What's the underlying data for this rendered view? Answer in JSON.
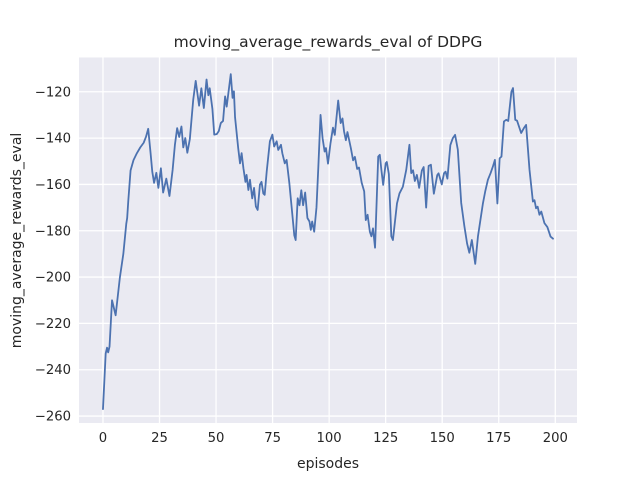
{
  "figure": {
    "background": "#ffffff",
    "axes_background": "#eaeaf2",
    "grid_color": "#ffffff",
    "text_color": "#262626"
  },
  "chart_data": {
    "type": "line",
    "title": "moving_average_rewards_eval of DDPG",
    "xlabel": "episodes",
    "ylabel": "moving_average_rewards_eval",
    "grid": true,
    "legend_position": "none",
    "xlim": [
      -10.6,
      209.6
    ],
    "ylim": [
      -263,
      -105.2
    ],
    "x_ticks": [
      0,
      25,
      50,
      75,
      100,
      125,
      150,
      175,
      200
    ],
    "x_tick_labels": [
      "0",
      "25",
      "50",
      "75",
      "100",
      "125",
      "150",
      "175",
      "200"
    ],
    "y_ticks": [
      -120,
      -140,
      -160,
      -180,
      -200,
      -220,
      -240,
      -260
    ],
    "y_tick_labels": [
      "−120",
      "−140",
      "−160",
      "−180",
      "−200",
      "−220",
      "−240",
      "−260"
    ],
    "series": [
      {
        "name": "moving_average_rewards_eval",
        "color": "#4c72b0",
        "x": [
          0,
          1.2,
          1.8,
          2.3,
          2.9,
          4,
          5.6,
          7.5,
          9,
          10.3,
          10.7,
          11.2,
          12.2,
          13.5,
          15,
          16.5,
          18,
          19,
          20,
          21,
          21.8,
          22.6,
          23.6,
          24.5,
          25.6,
          26.6,
          28,
          29.4,
          30.8,
          31.8,
          32.8,
          33.7,
          34.7,
          35.5,
          36.4,
          37.3,
          38.4,
          39.9,
          41,
          42.5,
          43.5,
          44.6,
          45.8,
          46.6,
          47.2,
          48.4,
          49.2,
          50.3,
          51.2,
          52.1,
          53.1,
          54,
          54.7,
          56.5,
          57.3,
          57.9,
          58.4,
          59.8,
          60.6,
          61.3,
          62.1,
          63,
          63.5,
          64.3,
          65,
          66,
          66.8,
          67.6,
          68.4,
          69.4,
          70.1,
          70.9,
          71.5,
          72.4,
          73.8,
          74.9,
          75.7,
          76.8,
          77.5,
          78.7,
          79.3,
          80.4,
          81.2,
          82.4,
          83.4,
          84.6,
          85.2,
          86.1,
          86.9,
          87.7,
          88.5,
          89.4,
          90.4,
          91.3,
          91.9,
          92.5,
          93.4,
          94.4,
          95.2,
          96.2,
          97.1,
          98,
          98.6,
          99.5,
          100.6,
          101.7,
          102.5,
          104,
          105.1,
          105.9,
          106.6,
          107.4,
          108.1,
          109.6,
          110.6,
          111.4,
          112.4,
          113.2,
          114.4,
          115.5,
          116.2,
          117,
          118,
          118.7,
          119.4,
          120.3,
          121.7,
          122.4,
          123.1,
          123.9,
          125,
          125.5,
          126.4,
          127.5,
          128.2,
          130,
          131.1,
          132.6,
          134.1,
          135.5,
          136.3,
          137.1,
          137.9,
          138.8,
          139.8,
          141,
          141.8,
          142.9,
          144,
          145,
          146.3,
          147.8,
          148.4,
          149.8,
          150.8,
          151.5,
          152.3,
          153.6,
          154.7,
          155.7,
          156.9,
          158.4,
          159.8,
          161,
          162,
          163.1,
          164.6,
          165.8,
          166.9,
          168,
          169,
          170.2,
          171.4,
          172.4,
          173.3,
          174.4,
          175.4,
          176.2,
          177.3,
          178.3,
          179.2,
          180.6,
          181.3,
          182.3,
          183.1,
          184.9,
          186.1,
          187.1,
          188.6,
          190.1,
          190.8,
          191.5,
          192.2,
          193,
          193.8,
          195.2,
          196.5,
          197.9,
          199
        ],
        "y": [
          -257,
          -233,
          -230.5,
          -232.5,
          -230,
          -210,
          -216.5,
          -200,
          -190,
          -177,
          -174.5,
          -167,
          -154,
          -149.5,
          -146.5,
          -144,
          -142,
          -139.5,
          -136,
          -146,
          -154.5,
          -159.3,
          -155,
          -161.5,
          -153,
          -163.5,
          -157.5,
          -165,
          -153.7,
          -143,
          -135.7,
          -139.5,
          -135,
          -144,
          -140,
          -146.3,
          -140.5,
          -123.5,
          -115.3,
          -126,
          -118.5,
          -127,
          -114.7,
          -121.5,
          -118.5,
          -127.5,
          -138.5,
          -138.3,
          -137,
          -133.5,
          -132.6,
          -122,
          -126.4,
          -112.4,
          -122.6,
          -119.8,
          -131,
          -144.4,
          -150.9,
          -146.5,
          -153,
          -158.9,
          -155.9,
          -162.4,
          -158,
          -166,
          -161.5,
          -169.5,
          -171,
          -160.1,
          -158.9,
          -163.9,
          -164.5,
          -154.4,
          -141.4,
          -138.5,
          -143.6,
          -141.4,
          -145.1,
          -142.9,
          -146.5,
          -150.9,
          -149.4,
          -159.4,
          -169.6,
          -182,
          -184,
          -166,
          -169,
          -162.5,
          -169,
          -163.5,
          -174.5,
          -176,
          -179.6,
          -176,
          -180.4,
          -170,
          -153,
          -130,
          -140,
          -145.8,
          -144.3,
          -151,
          -142.2,
          -135.5,
          -138.6,
          -123.8,
          -133.5,
          -131.5,
          -137.1,
          -140.9,
          -137.4,
          -144.3,
          -149.6,
          -148.1,
          -153.3,
          -152.7,
          -159.3,
          -163,
          -175.4,
          -173.1,
          -180.4,
          -182.4,
          -179,
          -187.3,
          -148,
          -147.2,
          -153.7,
          -160.2,
          -150.9,
          -150.3,
          -155.5,
          -182.4,
          -184,
          -168.2,
          -163.9,
          -161,
          -153.7,
          -142.9,
          -155.1,
          -153.9,
          -158.5,
          -155.9,
          -161.5,
          -154,
          -152.5,
          -170,
          -152,
          -151.5,
          -164,
          -156,
          -155.2,
          -160,
          -155.2,
          -154.5,
          -157.5,
          -143,
          -140,
          -138.6,
          -145,
          -168,
          -178,
          -185.5,
          -189.5,
          -184,
          -194.3,
          -182.5,
          -175.3,
          -168.2,
          -163.1,
          -158,
          -155.1,
          -152.3,
          -149.4,
          -168.2,
          -148.7,
          -148,
          -132.8,
          -132.1,
          -132.6,
          -120,
          -118.4,
          -132.1,
          -132.5,
          -137.8,
          -135.7,
          -134.3,
          -153.7,
          -167.4,
          -166.8,
          -170.3,
          -169.6,
          -173.1,
          -171.7,
          -176.7,
          -178.4,
          -182.5,
          -183.4
        ]
      }
    ]
  }
}
